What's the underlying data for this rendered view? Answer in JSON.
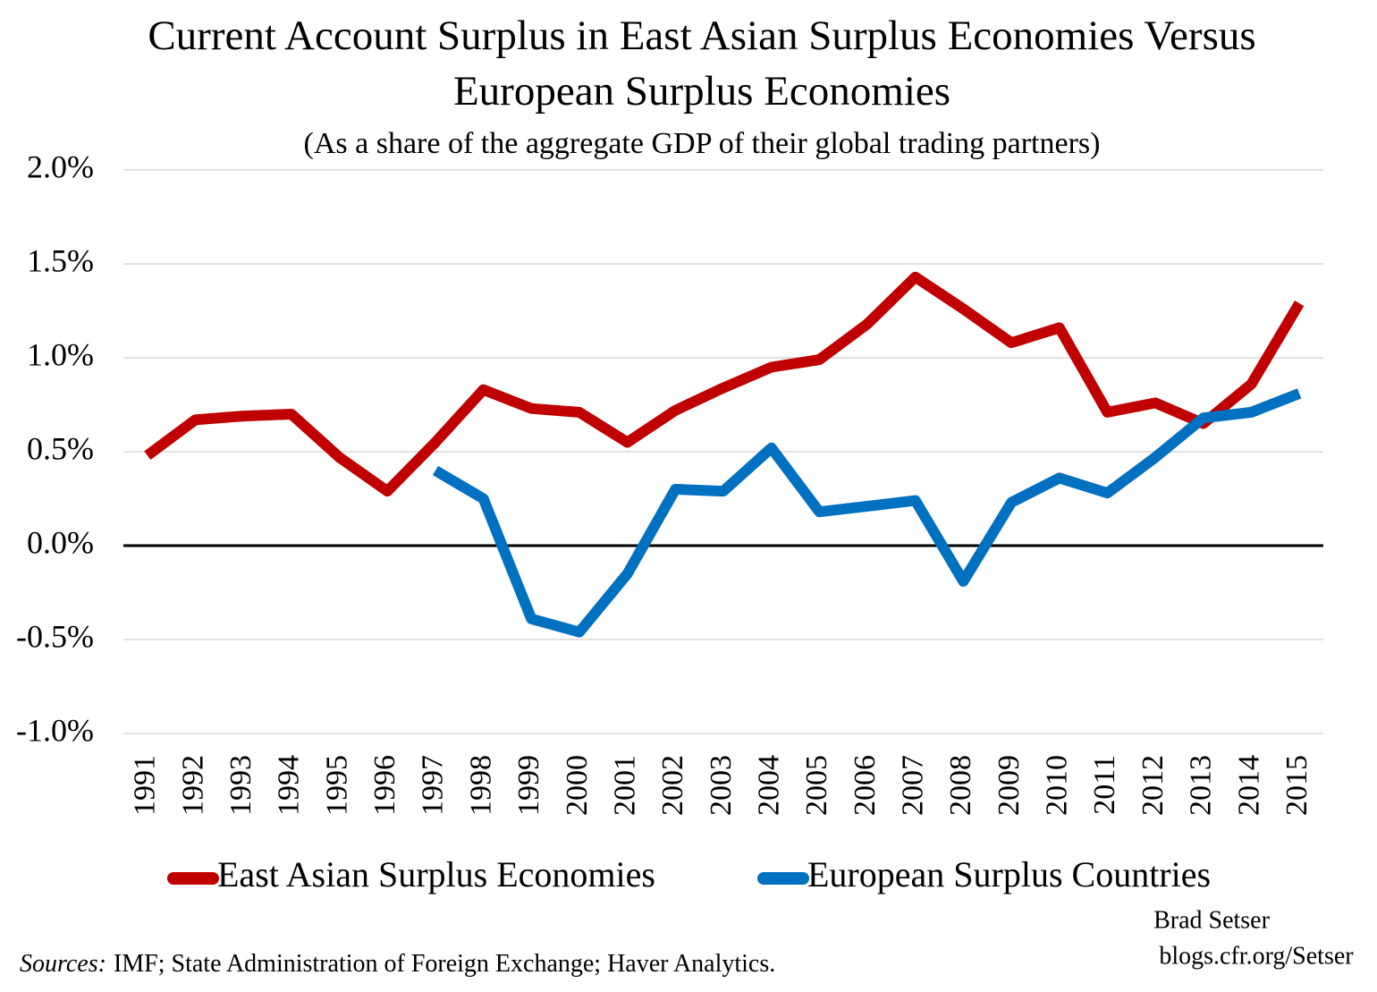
{
  "chart_data": {
    "type": "line",
    "title": [
      "Current Account Surplus in East Asian Surplus Economies Versus",
      "European Surplus Economies"
    ],
    "subtitle": "(As a share of the aggregate GDP of their global trading partners)",
    "categories": [
      "1991",
      "1992",
      "1993",
      "1994",
      "1995",
      "1996",
      "1997",
      "1998",
      "1999",
      "2000",
      "2001",
      "2002",
      "2003",
      "2004",
      "2005",
      "2006",
      "2007",
      "2008",
      "2009",
      "2010",
      "2011",
      "2012",
      "2013",
      "2014",
      "2015"
    ],
    "series": [
      {
        "name": "East Asian Surplus Economies",
        "color": "#c00000",
        "values": [
          0.48,
          0.67,
          0.69,
          0.7,
          0.47,
          0.29,
          0.55,
          0.83,
          0.73,
          0.71,
          0.55,
          0.72,
          0.84,
          0.95,
          0.99,
          1.18,
          1.43,
          1.26,
          1.08,
          1.16,
          0.71,
          0.76,
          0.65,
          0.86,
          1.29
        ]
      },
      {
        "name": "European Surplus Countries",
        "color": "#0070c0",
        "values": [
          null,
          null,
          null,
          null,
          null,
          null,
          0.4,
          0.25,
          -0.39,
          -0.46,
          -0.15,
          0.3,
          0.29,
          0.52,
          0.18,
          0.21,
          0.24,
          -0.19,
          0.23,
          0.36,
          0.28,
          0.47,
          0.68,
          0.71,
          0.81
        ]
      }
    ],
    "ylim": [
      -1.0,
      2.0
    ],
    "yticks": [
      {
        "value": -1.0,
        "label": "-1.0%"
      },
      {
        "value": -0.5,
        "label": "-0.5%"
      },
      {
        "value": 0,
        "label": "0.0%"
      },
      {
        "value": 0.5,
        "label": "0.5%"
      },
      {
        "value": 1.0,
        "label": "1.0%"
      },
      {
        "value": 1.5,
        "label": "1.5%"
      },
      {
        "value": 2.0,
        "label": "2.0%"
      }
    ],
    "grid": true,
    "legend": "bottom",
    "credit": [
      "Brad Setser",
      "blogs.cfr.org/Setser"
    ],
    "source_label": "Sources:",
    "source": "IMF; State Administration of Foreign Exchange; Haver Analytics."
  }
}
